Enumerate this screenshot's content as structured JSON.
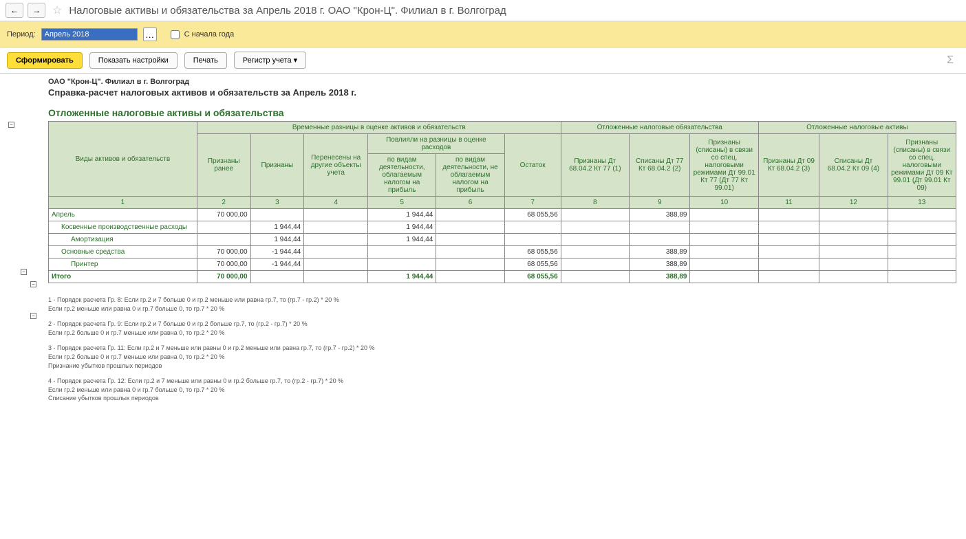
{
  "header": {
    "title": "Налоговые активы и обязательства за Апрель 2018 г. ОАО \"Крон-Ц\". Филиал в г. Волгоград"
  },
  "period": {
    "label": "Период:",
    "value": "Апрель 2018",
    "since_year_label": "С начала года"
  },
  "toolbar": {
    "generate": "Сформировать",
    "show_settings": "Показать настройки",
    "print": "Печать",
    "register": "Регистр учета ▾"
  },
  "report": {
    "org_line": "ОАО \"Крон-Ц\". Филиал в г. Волгоград",
    "title": "Справка-расчет налоговых активов и обязательств за Апрель 2018 г.",
    "section_title": "Отложенные налоговые активы и обязательства"
  },
  "table": {
    "group_headers": {
      "assets_label": "Виды активов и обязательств",
      "temp_diff": "Временные разницы в оценке активов и обязательств",
      "def_liab": "Отложенные налоговые обязательства",
      "def_asset": "Отложенные налоговые активы"
    },
    "sub_headers": {
      "recognized_earlier": "Признаны ранее",
      "recognized": "Признаны",
      "transferred": "Перенесены на другие объекты учета",
      "affected_diff": "Повлияли на разницы в оценке расходов",
      "affected_taxable": "по видам деятельности, облагаемым налогом на прибыль",
      "affected_nontaxable": "по видам деятельности, не облагаемым налогом на прибыль",
      "remainder": "Остаток",
      "liab_recognized": "Признаны Дт 68.04.2 Кт 77 (1)",
      "liab_written": "Списаны Дт 77 Кт 68.04.2 (2)",
      "liab_special": "Признаны (списаны) в связи со спец. налоговыми режимами Дт 99.01 Кт 77 (Дт 77 Кт 99.01)",
      "asset_recognized": "Признаны Дт 09 Кт 68.04.2 (3)",
      "asset_written": "Списаны Дт 68.04.2 Кт 09 (4)",
      "asset_special": "Признаны (списаны) в связи со спец. налоговыми режимами Дт 09 Кт 99.01 (Дт 99.01 Кт 09)"
    },
    "col_numbers": [
      "1",
      "2",
      "3",
      "4",
      "5",
      "6",
      "7",
      "8",
      "9",
      "10",
      "11",
      "12",
      "13"
    ],
    "rows": [
      {
        "label": "Апрель",
        "indent": 0,
        "cells": [
          "70 000,00",
          "",
          "",
          "1 944,44",
          "",
          "68 055,56",
          "",
          "388,89",
          "",
          "",
          "",
          ""
        ]
      },
      {
        "label": "Косвенные производственные расходы",
        "indent": 1,
        "cells": [
          "",
          "1 944,44",
          "",
          "1 944,44",
          "",
          "",
          "",
          "",
          "",
          "",
          "",
          ""
        ]
      },
      {
        "label": "Амортизация",
        "indent": 2,
        "cells": [
          "",
          "1 944,44",
          "",
          "1 944,44",
          "",
          "",
          "",
          "",
          "",
          "",
          "",
          ""
        ]
      },
      {
        "label": "Основные средства",
        "indent": 1,
        "cells": [
          "70 000,00",
          "-1 944,44",
          "",
          "",
          "",
          "68 055,56",
          "",
          "388,89",
          "",
          "",
          "",
          ""
        ]
      },
      {
        "label": "Принтер",
        "indent": 2,
        "cells": [
          "70 000,00",
          "-1 944,44",
          "",
          "",
          "",
          "68 055,56",
          "",
          "388,89",
          "",
          "",
          "",
          ""
        ]
      }
    ],
    "total": {
      "label": "Итого",
      "cells": [
        "70 000,00",
        "",
        "",
        "1 944,44",
        "",
        "68 055,56",
        "",
        "388,89",
        "",
        "",
        "",
        ""
      ]
    }
  },
  "footnotes": [
    "1 - Порядок расчета Гр. 8: Если гр.2 и 7 больше 0 и гр.2 меньше или равна гр.7, то (гр.7 - гр.2) * 20 %\nЕсли гр.2 меньше или равна 0 и гр.7 больше 0, то   гр.7 * 20 %",
    "2 - Порядок расчета Гр. 9: Если гр.2 и 7 больше 0 и гр.2 больше гр.7, то (гр.2 - гр.7) * 20 %\nЕсли гр.2 больше 0 и гр.7 меньше или равна 0, то   гр.2 * 20 %",
    "3 - Порядок расчета Гр. 11:  Если гр.2 и 7 меньше или равны 0 и гр.2 меньше или равна гр.7, то (гр.7 - гр.2) * 20 %\nЕсли гр.2 больше 0 и гр.7 меньше или равна 0, то   гр.2 * 20 %\nПризнание убытков прошлых периодов",
    "4 - Порядок расчета Гр. 12:  Если гр.2 и 7 меньше или равны 0 и гр.2 больше гр.7, то (гр.2 - гр.7) * 20 %\nЕсли гр.2 меньше или равна 0 и гр.7 больше 0, то   гр.7 * 20 %\nСписание убытков прошлых периодов"
  ],
  "colors": {
    "header_bg": "#d5e4c8",
    "header_text": "#2e6e2e",
    "period_bg": "#fbe99a",
    "primary_btn_bg": "#ffde3a"
  }
}
